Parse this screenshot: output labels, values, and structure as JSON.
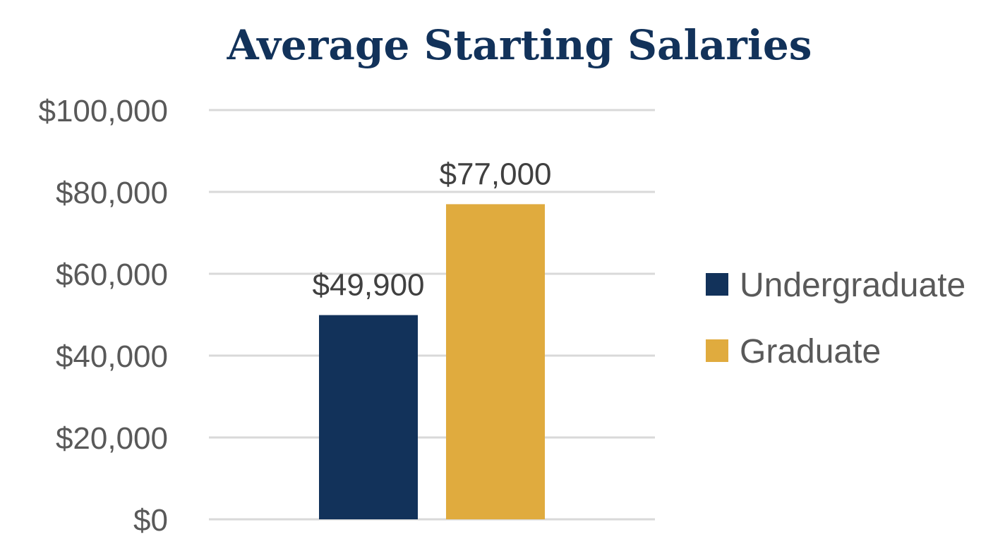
{
  "chart_data": {
    "type": "bar",
    "title": "Average Starting Salaries",
    "xlabel": "",
    "ylabel": "",
    "ylim": [
      0,
      100000
    ],
    "y_ticks": [
      0,
      20000,
      40000,
      60000,
      80000,
      100000
    ],
    "y_tick_labels": [
      "$0",
      "$20,000",
      "$40,000",
      "$60,000",
      "$80,000",
      "$100,000"
    ],
    "grid": true,
    "legend_position": "right",
    "series": [
      {
        "name": "Undergraduate",
        "values": [
          49900
        ],
        "value_label": "$49,900",
        "color": "#12325a"
      },
      {
        "name": "Graduate",
        "values": [
          77000
        ],
        "value_label": "$77,000",
        "color": "#e0ab3e"
      }
    ]
  }
}
